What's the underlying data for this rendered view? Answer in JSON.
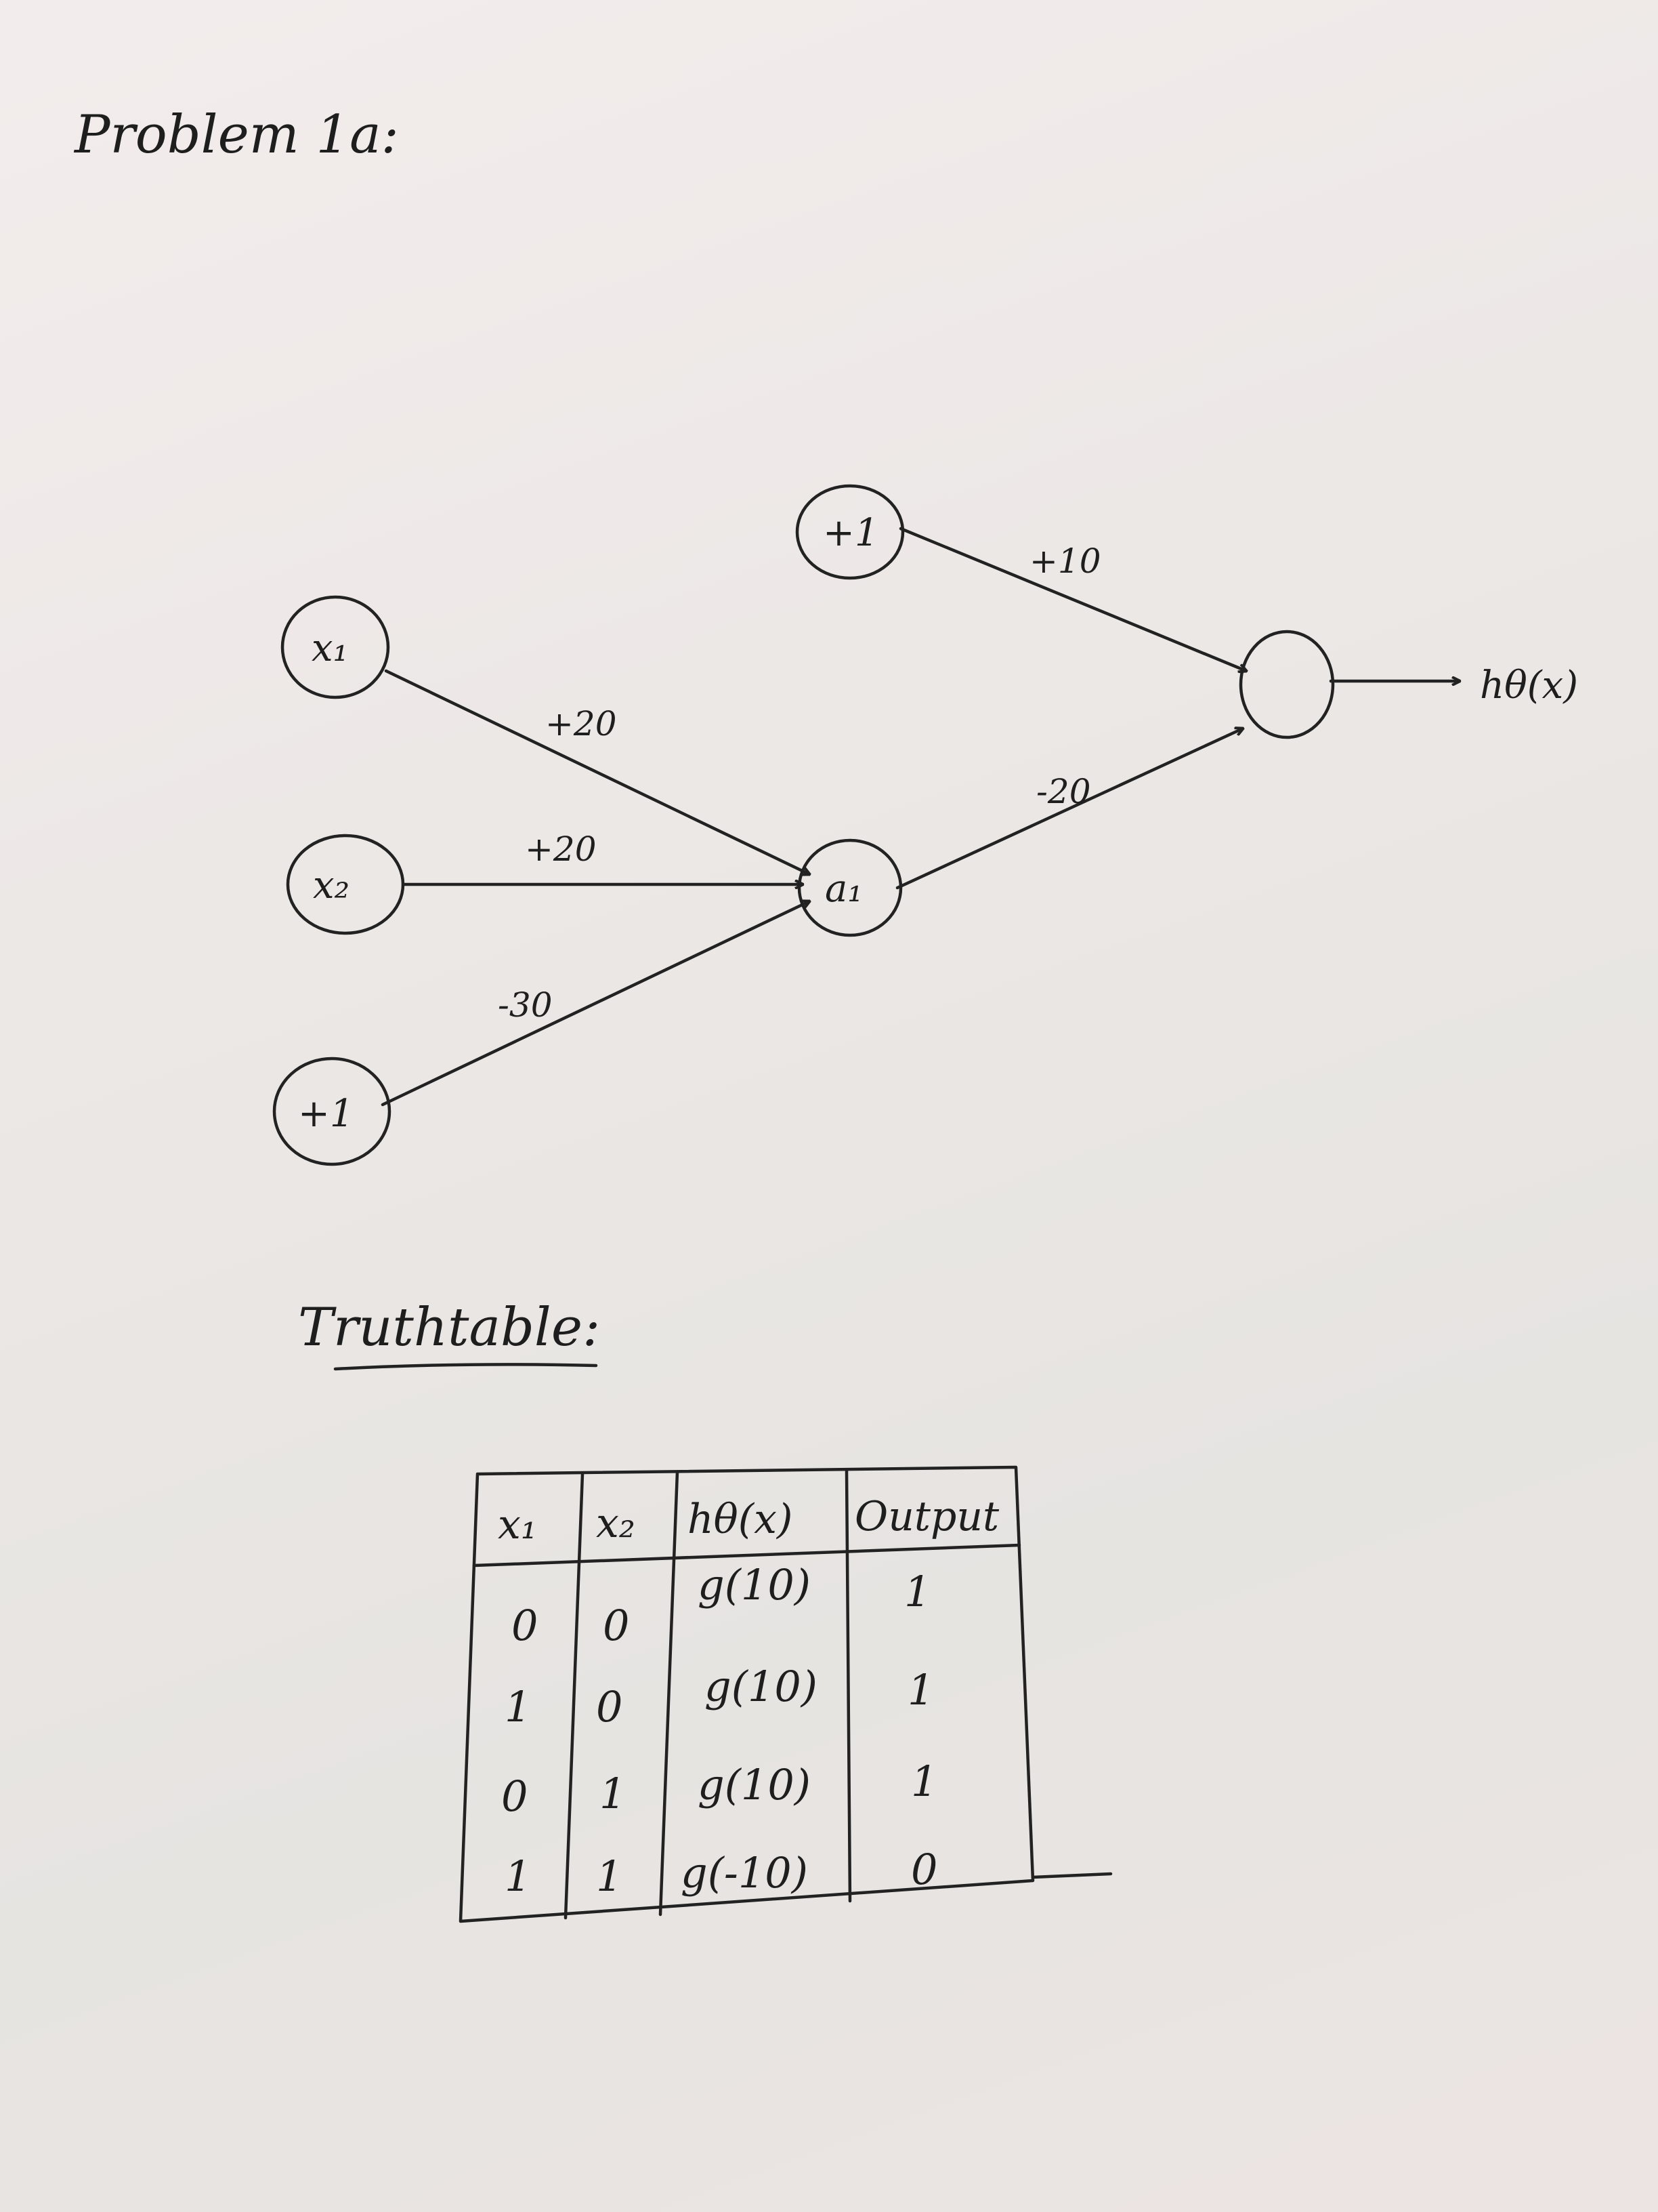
{
  "title": "Problem 1a:",
  "network": {
    "nodes": {
      "x1": "x₁",
      "x2": "x₂",
      "bias_input": "+1",
      "bias_hidden": "+1",
      "hidden": "a₁",
      "output": ""
    },
    "weights": {
      "x1_to_a1": "+20",
      "x2_to_a1": "+20",
      "bias_to_a1": "-30",
      "bias_to_out": "+10",
      "a1_to_out": "-20"
    },
    "output_label": "hθ(x)"
  },
  "truth_table": {
    "heading": "Truthtable:",
    "headers": [
      "x₁",
      "x₂",
      "hθ(x)",
      "Output"
    ],
    "rows": [
      [
        "0",
        "0",
        "g(10)",
        "1"
      ],
      [
        "1",
        "0",
        "g(10)",
        "1"
      ],
      [
        "0",
        "1",
        "g(10)",
        "1"
      ],
      [
        "1",
        "1",
        "g(-10)",
        "0"
      ]
    ]
  }
}
